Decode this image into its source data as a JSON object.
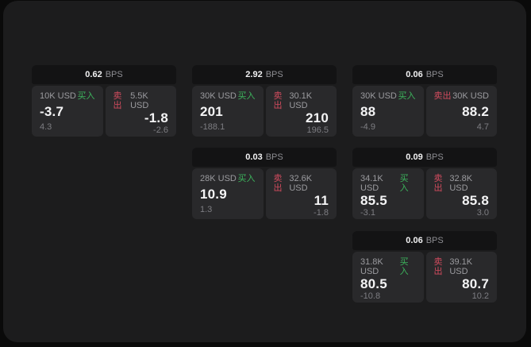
{
  "labels": {
    "buy": "买入",
    "sell": "卖出",
    "bps_unit": "BPS"
  },
  "colors": {
    "buy_green": "#3cb35c",
    "sell_red": "#d14b5e",
    "outer_bg": "#0a0a0a",
    "panel_bg": "#1c1c1d",
    "card_header_bg": "#131314",
    "tile_bg": "#29292b"
  },
  "cards": [
    {
      "bps": "0.62",
      "buy": {
        "amount": "10K USD",
        "price": "-3.7",
        "change": "4.3"
      },
      "sell": {
        "amount": "5.5K USD",
        "price": "-1.8",
        "change": "-2.6"
      }
    },
    {
      "bps": "2.92",
      "buy": {
        "amount": "30K USD",
        "price": "201",
        "change": "-188.1"
      },
      "sell": {
        "amount": "30.1K USD",
        "price": "210",
        "change": "196.5"
      }
    },
    {
      "bps": "0.06",
      "buy": {
        "amount": "30K USD",
        "price": "88",
        "change": "-4.9"
      },
      "sell": {
        "amount": "30K USD",
        "price": "88.2",
        "change": "4.7"
      }
    },
    {
      "bps": "0.03",
      "buy": {
        "amount": "28K USD",
        "price": "10.9",
        "change": "1.3"
      },
      "sell": {
        "amount": "32.6K USD",
        "price": "11",
        "change": "-1.8"
      }
    },
    {
      "bps": "0.09",
      "buy": {
        "amount": "34.1K USD",
        "price": "85.5",
        "change": "-3.1"
      },
      "sell": {
        "amount": "32.8K USD",
        "price": "85.8",
        "change": "3.0"
      }
    },
    {
      "bps": "0.06",
      "buy": {
        "amount": "31.8K USD",
        "price": "80.5",
        "change": "-10.8"
      },
      "sell": {
        "amount": "39.1K USD",
        "price": "80.7",
        "change": "10.2"
      }
    }
  ]
}
